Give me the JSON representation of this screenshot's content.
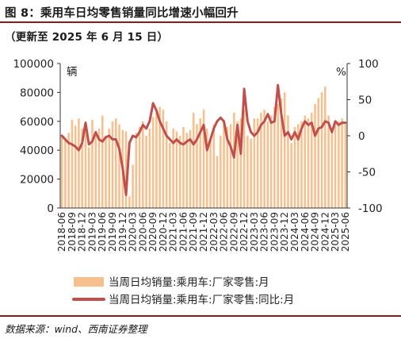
{
  "header": {
    "title": "图 8：乘用车日均零售销量同比增速小幅回升",
    "subtitle": "（更新至 2025 年 6 月 15 日）"
  },
  "footer": {
    "source": "数据来源：wind、西南证券整理"
  },
  "colors": {
    "bar": "#f5c08e",
    "line": "#c0504d",
    "rule": "#8b1a1a",
    "axis": "#333333"
  },
  "chart_data": {
    "type": "bar",
    "categories": [
      "2018-06",
      "2018-07",
      "2018-08",
      "2018-09",
      "2018-10",
      "2018-11",
      "2018-12",
      "2019-01",
      "2019-02",
      "2019-03",
      "2019-04",
      "2019-05",
      "2019-06",
      "2019-07",
      "2019-08",
      "2019-09",
      "2019-10",
      "2019-11",
      "2019-12",
      "2020-01",
      "2020-02",
      "2020-03",
      "2020-04",
      "2020-05",
      "2020-06",
      "2020-07",
      "2020-08",
      "2020-09",
      "2020-10",
      "2020-11",
      "2020-12",
      "2021-01",
      "2021-02",
      "2021-03",
      "2021-04",
      "2021-05",
      "2021-06",
      "2021-07",
      "2021-08",
      "2021-09",
      "2021-10",
      "2021-11",
      "2021-12",
      "2022-01",
      "2022-02",
      "2022-03",
      "2022-04",
      "2022-05",
      "2022-06",
      "2022-07",
      "2022-08",
      "2022-09",
      "2022-10",
      "2022-11",
      "2022-12",
      "2023-01",
      "2023-02",
      "2023-03",
      "2023-04",
      "2023-05",
      "2023-06",
      "2023-07",
      "2023-08",
      "2023-09",
      "2023-10",
      "2023-11",
      "2023-12",
      "2024-01",
      "2024-02",
      "2024-03",
      "2024-04",
      "2024-05",
      "2024-06",
      "2024-07",
      "2024-08",
      "2024-09",
      "2024-10",
      "2024-11",
      "2024-12",
      "2025-01",
      "2025-02",
      "2025-03",
      "2025-04",
      "2025-05",
      "2025-06"
    ],
    "tick_labels": [
      "2018-06",
      "2018-09",
      "2018-12",
      "2019-03",
      "2019-06",
      "2019-09",
      "2019-12",
      "2020-03",
      "2020-06",
      "2020-09",
      "2020-12",
      "2021-03",
      "2021-06",
      "2021-09",
      "2021-12",
      "2022-03",
      "2022-06",
      "2022-09",
      "2022-12",
      "2023-03",
      "2023-06",
      "2023-09",
      "2023-12",
      "2024-03",
      "2024-06",
      "2024-09",
      "2024-12",
      "2025-03",
      "2025-06"
    ],
    "series": [
      {
        "name": "当周日均销量:乘用车:厂家零售:月",
        "axis": "left",
        "type": "bar",
        "values": [
          50000,
          48000,
          52000,
          61000,
          57000,
          62000,
          55000,
          58000,
          42000,
          61000,
          51000,
          55000,
          64000,
          50000,
          55000,
          60000,
          62000,
          58000,
          54000,
          53000,
          8000,
          30000,
          52000,
          56000,
          60000,
          50000,
          55000,
          63000,
          66000,
          70000,
          68000,
          60000,
          45000,
          55000,
          53000,
          50000,
          56000,
          52000,
          54000,
          66000,
          58000,
          62000,
          68000,
          55000,
          48000,
          58000,
          36000,
          50000,
          60000,
          56000,
          58000,
          66000,
          60000,
          62000,
          68000,
          50000,
          48000,
          62000,
          62000,
          66000,
          68000,
          60000,
          64000,
          70000,
          72000,
          76000,
          80000,
          64000,
          45000,
          56000,
          58000,
          60000,
          64000,
          62000,
          66000,
          72000,
          76000,
          80000,
          84000,
          64000,
          52000,
          58000,
          60000,
          62000,
          58000
        ]
      },
      {
        "name": "当周日均销量:乘用车:厂家零售:同比:月",
        "axis": "right",
        "type": "line",
        "values": [
          0,
          -5,
          -10,
          -12,
          -15,
          -20,
          -10,
          18,
          -12,
          -8,
          5,
          -5,
          -8,
          -2,
          0,
          -5,
          -5,
          -18,
          -45,
          -82,
          -10,
          0,
          -2,
          5,
          15,
          10,
          20,
          45,
          35,
          20,
          10,
          0,
          -5,
          -10,
          -5,
          -10,
          -12,
          -8,
          -5,
          -12,
          -5,
          5,
          15,
          -20,
          -5,
          10,
          20,
          25,
          20,
          -5,
          -15,
          -30,
          15,
          -25,
          65,
          20,
          5,
          0,
          5,
          15,
          20,
          30,
          18,
          20,
          70,
          30,
          0,
          5,
          -5,
          5,
          -5,
          10,
          20,
          15,
          18,
          0,
          10,
          12,
          20,
          18,
          5,
          20,
          15,
          18,
          18
        ]
      }
    ],
    "left_axis": {
      "label": "辆",
      "ticks": [
        0,
        20000,
        40000,
        60000,
        80000,
        100000
      ],
      "ylim": [
        0,
        100000
      ]
    },
    "right_axis": {
      "label": "%",
      "ticks": [
        -100,
        -50,
        0,
        50,
        100
      ],
      "ylim": [
        -100,
        100
      ]
    },
    "legend": {
      "placement": "bottom-center"
    }
  }
}
